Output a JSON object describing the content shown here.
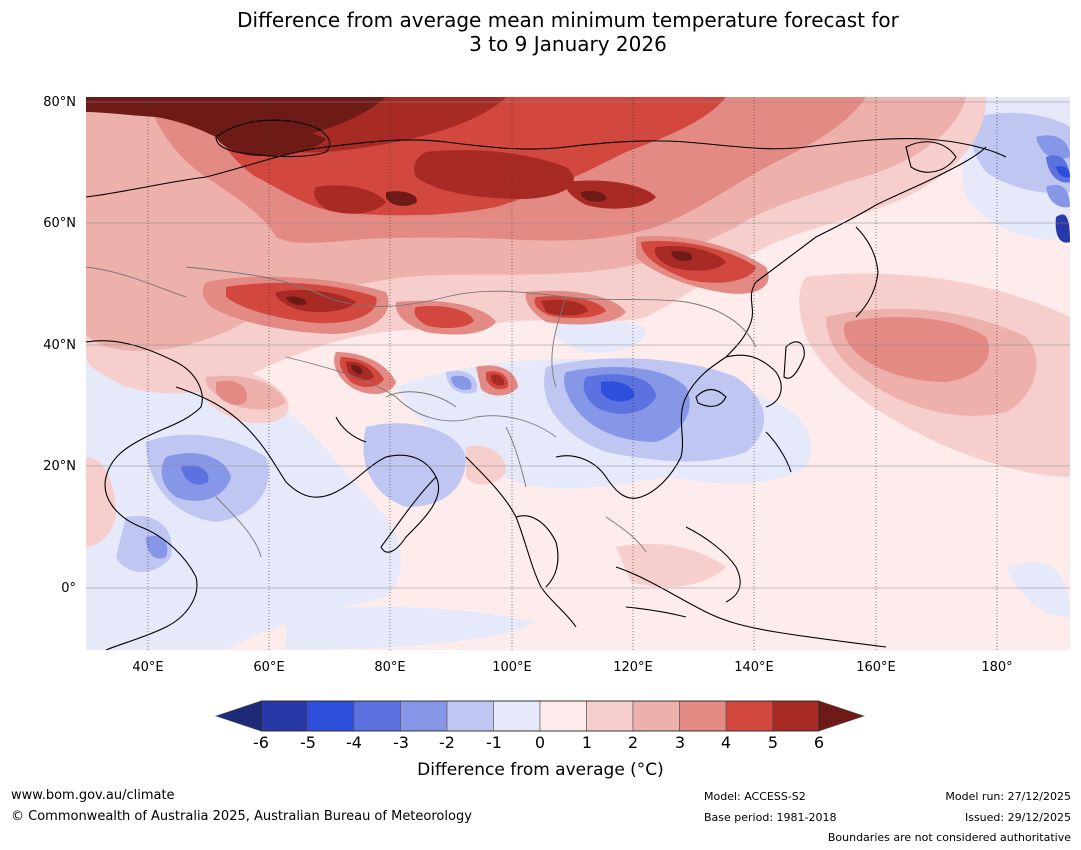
{
  "title": {
    "line1": "Difference from average mean minimum temperature forecast for",
    "line2": "3 to 9 January 2026"
  },
  "map": {
    "lat_labels": [
      "80°N",
      "60°N",
      "40°N",
      "20°N",
      "0°"
    ],
    "lon_labels": [
      "40°E",
      "60°E",
      "80°E",
      "100°E",
      "120°E",
      "140°E",
      "160°E",
      "180°"
    ],
    "extent": {
      "lon_min": 30,
      "lon_max": 192,
      "lat_min": -10,
      "lat_max": 80
    }
  },
  "colorbar": {
    "ticks": [
      "-6",
      "-5",
      "-4",
      "-3",
      "-2",
      "-1",
      "0",
      "1",
      "2",
      "3",
      "4",
      "5",
      "6"
    ],
    "colors": {
      "below_min": "#1c2a78",
      "c_m6_m5": "#2838a8",
      "c_m5_m4": "#2e4edc",
      "c_m4_m3": "#5b72e0",
      "c_m3_m2": "#8797e8",
      "c_m2_m1": "#bfc6f2",
      "c_m1_0": "#e6e9fa",
      "c_0_1": "#fdeceb",
      "c_1_2": "#f6cfcd",
      "c_2_3": "#edb0ab",
      "c_3_4": "#e38a84",
      "c_4_5": "#d2473e",
      "c_5_6": "#a82a25",
      "above_max": "#6e1a16"
    },
    "label": "Difference from average (°C)"
  },
  "footer": {
    "website": "www.bom.gov.au/climate",
    "copyright": "© Commonwealth of Australia 2025, Australian Bureau of Meteorology",
    "model": "Model: ACCESS-S2",
    "base_period": "Base period: 1981-2018",
    "model_run": "Model run: 27/12/2025",
    "issued": "Issued: 29/12/2025",
    "disclaimer": "Boundaries are not considered authoritative"
  }
}
